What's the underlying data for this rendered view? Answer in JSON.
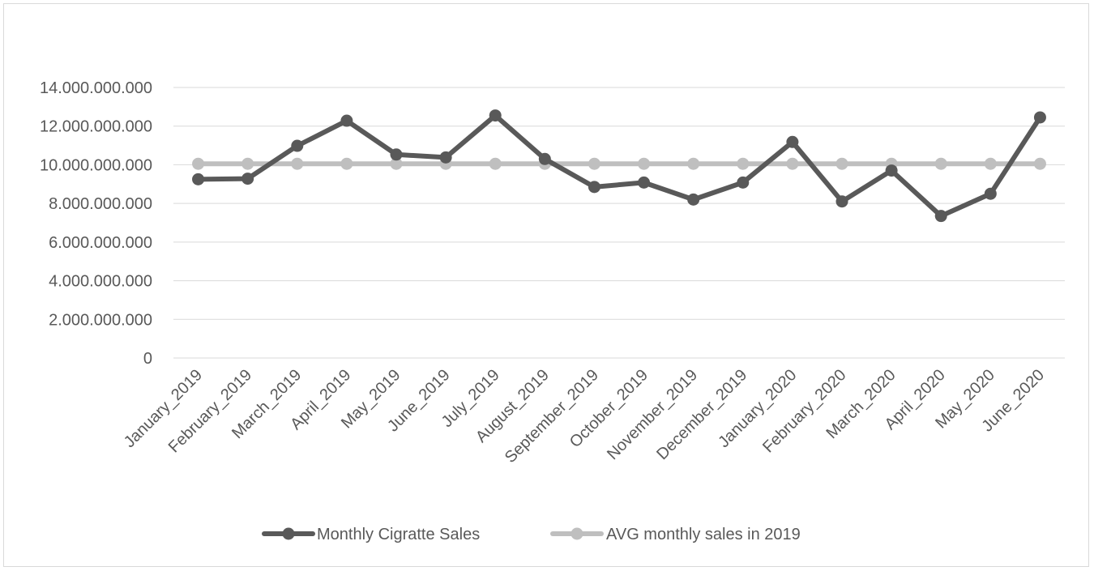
{
  "chart_data": {
    "type": "line",
    "title": "",
    "xlabel": "",
    "ylabel": "",
    "ylim": [
      0,
      14000000000
    ],
    "yticks": [
      0,
      2000000000,
      4000000000,
      6000000000,
      8000000000,
      10000000000,
      12000000000,
      14000000000
    ],
    "ytick_labels": [
      "0",
      "2.000.000.000",
      "4.000.000.000",
      "6.000.000.000",
      "8.000.000.000",
      "10.000.000.000",
      "12.000.000.000",
      "14.000.000.000"
    ],
    "grid": true,
    "legend_position": "bottom",
    "categories": [
      "January_2019",
      "February_2019",
      "March_2019",
      "April_2019",
      "May_2019",
      "June_2019",
      "July_2019",
      "August_2019",
      "September_2019",
      "October_2019",
      "November_2019",
      "December_2019",
      "January_2020",
      "February_2020",
      "March_2020",
      "April_2020",
      "May_2020",
      "June_2020"
    ],
    "series": [
      {
        "name": "Monthly Cigratte Sales",
        "color": "#595959",
        "values": [
          9250000000,
          9280000000,
          10980000000,
          12280000000,
          10530000000,
          10380000000,
          12550000000,
          10300000000,
          8850000000,
          9080000000,
          8200000000,
          9080000000,
          11180000000,
          8100000000,
          9700000000,
          7350000000,
          8500000000,
          12450000000
        ]
      },
      {
        "name": "AVG monthly sales in 2019",
        "color": "#bfbfbf",
        "values": [
          10050000000,
          10050000000,
          10050000000,
          10050000000,
          10050000000,
          10050000000,
          10050000000,
          10050000000,
          10050000000,
          10050000000,
          10050000000,
          10050000000,
          10050000000,
          10050000000,
          10050000000,
          10050000000,
          10050000000,
          10050000000
        ]
      }
    ]
  }
}
